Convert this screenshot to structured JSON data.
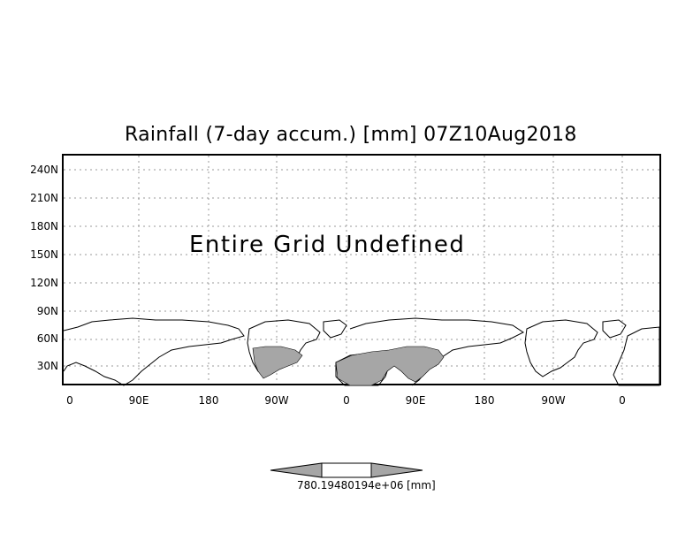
{
  "map": {
    "title": "Rainfall (7-day accum.) [mm] 07Z10Aug2018",
    "overlay_text": "Entire Grid Undefined",
    "lat_labels": [
      "240N",
      "210N",
      "180N",
      "150N",
      "120N",
      "90N",
      "60N",
      "30N"
    ],
    "lon_labels": [
      "0",
      "90E",
      "180",
      "90W",
      "0",
      "90E",
      "180",
      "90W",
      "0"
    ],
    "land_fill": "#a6a6a6",
    "grid_color": "#9a9a9a"
  },
  "legend": {
    "values_text": "780.19480194e+06",
    "unit": "[mm]",
    "arrow_color": "#a6a6a6"
  }
}
